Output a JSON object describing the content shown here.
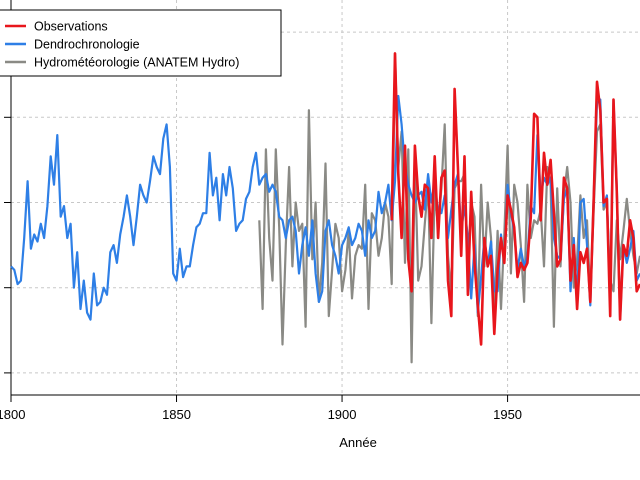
{
  "chart_data": {
    "type": "line",
    "title": "",
    "xlabel": "Année",
    "ylabel": "",
    "xlim": [
      1800,
      1990
    ],
    "ylim": [
      0,
      100
    ],
    "x_ticks": [
      1800,
      1850,
      1900,
      1950
    ],
    "grid": "vertical and horizontal dashed",
    "legend_position": "top-left",
    "series": [
      {
        "name": "Observations",
        "color": "#e8161c",
        "x": [
          1915,
          1916,
          1917,
          1918,
          1919,
          1920,
          1921,
          1922,
          1923,
          1924,
          1925,
          1926,
          1927,
          1928,
          1929,
          1930,
          1931,
          1932,
          1933,
          1934,
          1935,
          1936,
          1937,
          1938,
          1939,
          1940,
          1941,
          1942,
          1943,
          1944,
          1945,
          1946,
          1947,
          1948,
          1949,
          1950,
          1951,
          1952,
          1953,
          1954,
          1955,
          1956,
          1957,
          1958,
          1959,
          1960,
          1961,
          1962,
          1963,
          1964,
          1965,
          1966,
          1967,
          1968,
          1969,
          1970,
          1971,
          1972,
          1973,
          1974,
          1975,
          1976,
          1977,
          1978,
          1979,
          1980,
          1981,
          1982,
          1983,
          1984,
          1985,
          1986,
          1987,
          1988,
          1989,
          1990
        ],
        "values": [
          45,
          92,
          58,
          40,
          66,
          34,
          25,
          66,
          52,
          46,
          55,
          54,
          40,
          63,
          40,
          57,
          59,
          28,
          18,
          82,
          60,
          35,
          63,
          24,
          53,
          33,
          21,
          10,
          40,
          32,
          35,
          13,
          31,
          40,
          33,
          52,
          48,
          43,
          29,
          33,
          31,
          33,
          46,
          75,
          74,
          45,
          64,
          55,
          62,
          47,
          32,
          34,
          57,
          54,
          28,
          38,
          20,
          36,
          33,
          37,
          22,
          51,
          84,
          76,
          50,
          51,
          18,
          79,
          53,
          17,
          38,
          35,
          45,
          40,
          25,
          27
        ]
      },
      {
        "name": "Dendrochronologie",
        "color": "#2e7fe6",
        "x": [
          1800,
          1801,
          1802,
          1803,
          1804,
          1805,
          1806,
          1807,
          1808,
          1809,
          1810,
          1811,
          1812,
          1813,
          1814,
          1815,
          1816,
          1817,
          1818,
          1819,
          1820,
          1821,
          1822,
          1823,
          1824,
          1825,
          1826,
          1827,
          1828,
          1829,
          1830,
          1831,
          1832,
          1833,
          1834,
          1835,
          1836,
          1837,
          1838,
          1839,
          1840,
          1841,
          1842,
          1843,
          1844,
          1845,
          1846,
          1847,
          1848,
          1849,
          1850,
          1851,
          1852,
          1853,
          1854,
          1855,
          1856,
          1857,
          1858,
          1859,
          1860,
          1861,
          1862,
          1863,
          1864,
          1865,
          1866,
          1867,
          1868,
          1869,
          1870,
          1871,
          1872,
          1873,
          1874,
          1875,
          1876,
          1877,
          1878,
          1879,
          1880,
          1881,
          1882,
          1883,
          1884,
          1885,
          1886,
          1887,
          1888,
          1889,
          1890,
          1891,
          1892,
          1893,
          1894,
          1895,
          1896,
          1897,
          1898,
          1899,
          1900,
          1901,
          1902,
          1903,
          1904,
          1905,
          1906,
          1907,
          1908,
          1909,
          1910,
          1911,
          1912,
          1913,
          1914,
          1915,
          1916,
          1917,
          1918,
          1919,
          1920,
          1921,
          1922,
          1923,
          1924,
          1925,
          1926,
          1927,
          1928,
          1929,
          1930,
          1931,
          1932,
          1933,
          1934,
          1935,
          1936,
          1937,
          1938,
          1939,
          1940,
          1941,
          1942,
          1943,
          1944,
          1945,
          1946,
          1947,
          1948,
          1949,
          1950,
          1951,
          1952,
          1953,
          1954,
          1955,
          1956,
          1957,
          1958,
          1959,
          1960,
          1961,
          1962,
          1963,
          1964,
          1965,
          1966,
          1967,
          1968,
          1969,
          1970,
          1971,
          1972,
          1973,
          1974,
          1975,
          1976,
          1977,
          1978,
          1979,
          1980,
          1981,
          1982,
          1983,
          1984,
          1985,
          1986,
          1987,
          1988,
          1989,
          1990
        ],
        "values": [
          32,
          31,
          27,
          28,
          40,
          56,
          37,
          41,
          39,
          44,
          40,
          49,
          63,
          55,
          69,
          46,
          49,
          40,
          44,
          26,
          36,
          20,
          28,
          19,
          17,
          30,
          21,
          22,
          26,
          24,
          36,
          38,
          33,
          41,
          46,
          52,
          46,
          38,
          46,
          55,
          52,
          50,
          56,
          63,
          60,
          58,
          68,
          72,
          60,
          30,
          28,
          37,
          29,
          32,
          32,
          38,
          43,
          44,
          47,
          47,
          64,
          52,
          57,
          45,
          58,
          52,
          60,
          54,
          42,
          44,
          45,
          51,
          53,
          60,
          64,
          55,
          57,
          58,
          53,
          55,
          53,
          46,
          45,
          40,
          45,
          46,
          42,
          30,
          38,
          43,
          35,
          45,
          30,
          22,
          25,
          42,
          45,
          38,
          35,
          30,
          38,
          40,
          43,
          38,
          40,
          44,
          42,
          35,
          45,
          40,
          42,
          53,
          47,
          50,
          55,
          45,
          56,
          80,
          72,
          60,
          55,
          52,
          50,
          52,
          53,
          48,
          58,
          50,
          56,
          47,
          47,
          52,
          40,
          48,
          55,
          58,
          42,
          49,
          40,
          23,
          38,
          19,
          29,
          40,
          32,
          39,
          25,
          25,
          41,
          33,
          55,
          47,
          42,
          31,
          37,
          32,
          35,
          49,
          47,
          69,
          52,
          57,
          55,
          57,
          40,
          35,
          34,
          51,
          54,
          25,
          40,
          22,
          50,
          51,
          38,
          21,
          52,
          78,
          79,
          49,
          52,
          22,
          79,
          54,
          17,
          38,
          33,
          37,
          42,
          28,
          30
        ]
      },
      {
        "name": "Hydrométéorologie (ANATEM Hydro)",
        "color": "#8a8a85",
        "x": [
          1875,
          1876,
          1877,
          1878,
          1879,
          1880,
          1881,
          1882,
          1883,
          1884,
          1885,
          1886,
          1887,
          1888,
          1889,
          1890,
          1891,
          1892,
          1893,
          1894,
          1895,
          1896,
          1897,
          1898,
          1899,
          1900,
          1901,
          1902,
          1903,
          1904,
          1905,
          1906,
          1907,
          1908,
          1909,
          1910,
          1911,
          1912,
          1913,
          1914,
          1915,
          1916,
          1917,
          1918,
          1919,
          1920,
          1921,
          1922,
          1923,
          1924,
          1925,
          1926,
          1927,
          1928,
          1929,
          1930,
          1931,
          1932,
          1933,
          1934,
          1935,
          1936,
          1937,
          1938,
          1939,
          1940,
          1941,
          1942,
          1943,
          1944,
          1945,
          1946,
          1947,
          1948,
          1949,
          1950,
          1951,
          1952,
          1953,
          1954,
          1955,
          1956,
          1957,
          1958,
          1959,
          1960,
          1961,
          1962,
          1963,
          1964,
          1965,
          1966,
          1967,
          1968,
          1969,
          1970,
          1971,
          1972,
          1973,
          1974,
          1975,
          1976,
          1977,
          1978,
          1979,
          1980,
          1981,
          1982,
          1983,
          1984,
          1985,
          1986,
          1987,
          1988,
          1989,
          1990
        ],
        "values": [
          45,
          20,
          65,
          40,
          28,
          65,
          43,
          10,
          38,
          60,
          32,
          50,
          42,
          44,
          15,
          76,
          34,
          50,
          22,
          33,
          61,
          18,
          31,
          44,
          40,
          25,
          31,
          42,
          23,
          35,
          38,
          37,
          55,
          20,
          47,
          45,
          35,
          40,
          50,
          46,
          27,
          92,
          60,
          70,
          33,
          65,
          5,
          62,
          28,
          32,
          44,
          55,
          16,
          53,
          43,
          54,
          72,
          35,
          24,
          54,
          56,
          56,
          58,
          32,
          50,
          46,
          18,
          55,
          32,
          50,
          40,
          18,
          42,
          20,
          41,
          66,
          30,
          55,
          50,
          38,
          22,
          55,
          40,
          45,
          44,
          48,
          32,
          60,
          55,
          15,
          54,
          32,
          52,
          60,
          50,
          26,
          34,
          52,
          40,
          45,
          23,
          48,
          70,
          72,
          48,
          50,
          28,
          25,
          45,
          34,
          42,
          51,
          42,
          35,
          30,
          35
        ]
      }
    ]
  }
}
